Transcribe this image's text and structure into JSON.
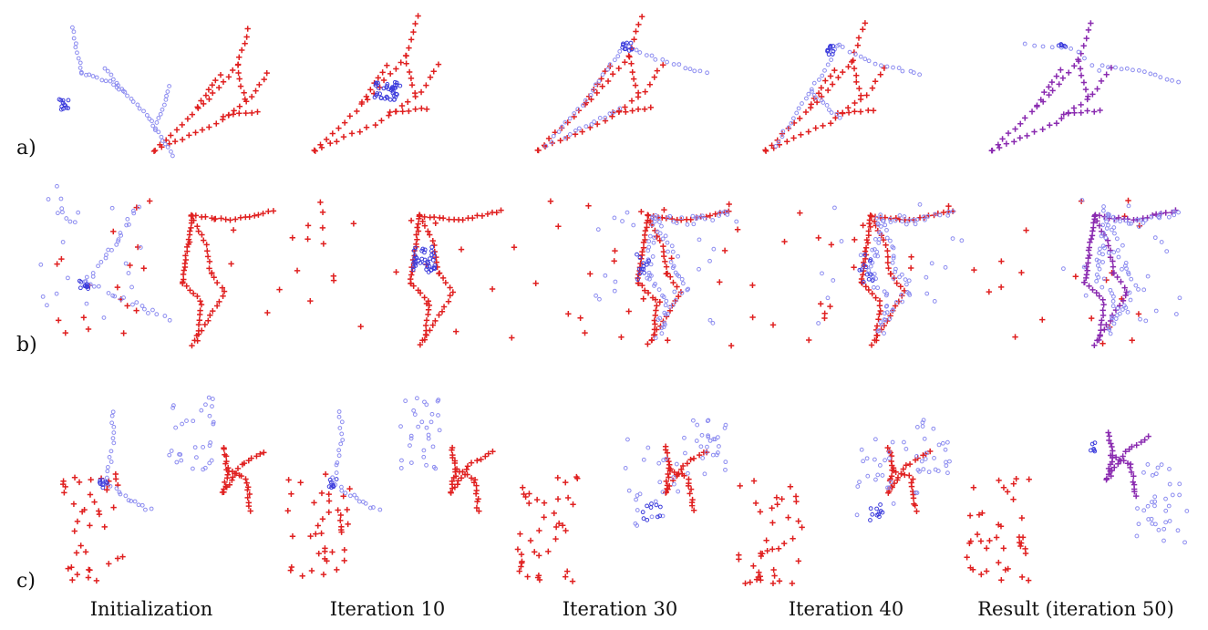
{
  "figure": {
    "row_labels": [
      "a)",
      "b)",
      "c)"
    ],
    "column_labels": [
      "Initialization",
      "Iteration 10",
      "Iteration 30",
      "Iteration 40",
      "Result (iteration 50)"
    ],
    "colors": {
      "target": "#e02020",
      "source": "#8c8cf0",
      "source_dense": "#3c3cdc",
      "aligned": "#8a2bb0"
    },
    "icons": {
      "target_marker": "plus-marker",
      "source_marker": "circle-marker"
    }
  }
}
